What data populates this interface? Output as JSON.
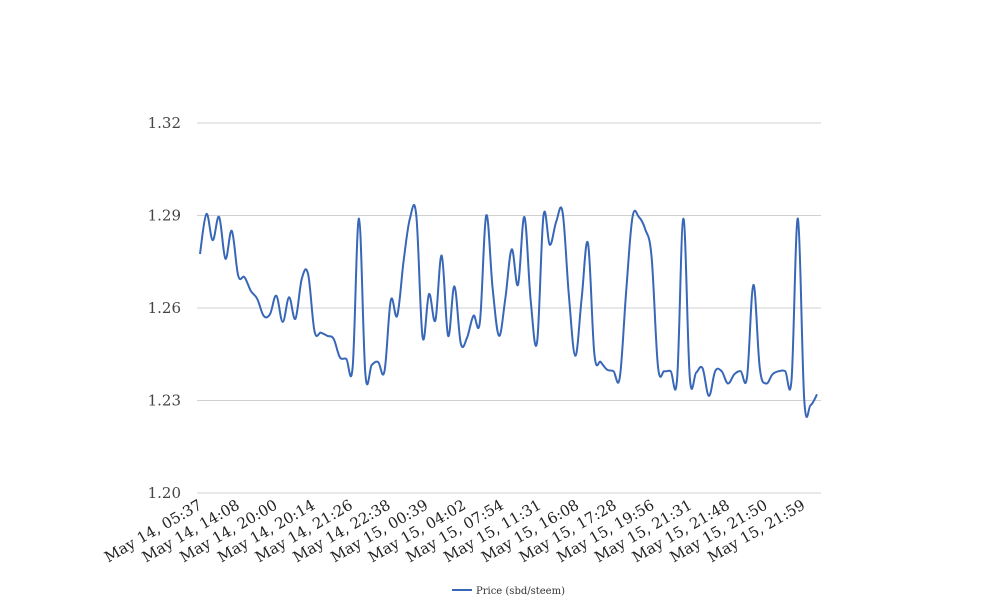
{
  "chart_data": {
    "type": "line",
    "title": "",
    "xlabel": "",
    "ylabel": "",
    "ylim": [
      1.2,
      1.32
    ],
    "yticks": [
      "1.20",
      "1.23",
      "1.26",
      "1.29",
      "1.32"
    ],
    "x_tick_labels": [
      "May 14, 05:37",
      "May 14, 14:08",
      "May 14, 20:00",
      "May 14, 20:14",
      "May 14, 21:26",
      "May 14, 22:38",
      "May 15, 00:39",
      "May 15, 04:02",
      "May 15, 07:54",
      "May 15, 11:31",
      "May 15, 16:08",
      "May 15, 17:28",
      "May 15, 19:56",
      "May 15, 21:31",
      "May 15, 21:48",
      "May 15, 21:50",
      "May 15, 21:59"
    ],
    "grid": true,
    "legend_position": "bottom-center",
    "series": [
      {
        "name": "Price (sbd/steem)",
        "color": "#3867b8",
        "values": [
          1.2775,
          1.2905,
          1.282,
          1.2895,
          1.276,
          1.285,
          1.2705,
          1.27,
          1.2655,
          1.263,
          1.2575,
          1.258,
          1.264,
          1.2555,
          1.2635,
          1.2565,
          1.2695,
          1.271,
          1.2525,
          1.252,
          1.251,
          1.25,
          1.244,
          1.2435,
          1.241,
          1.289,
          1.2385,
          1.2415,
          1.2425,
          1.2395,
          1.2625,
          1.2575,
          1.275,
          1.289,
          1.29,
          1.2505,
          1.2645,
          1.256,
          1.277,
          1.251,
          1.267,
          1.2485,
          1.2505,
          1.2575,
          1.2555,
          1.29,
          1.2665,
          1.251,
          1.263,
          1.279,
          1.2675,
          1.2895,
          1.262,
          1.249,
          1.29,
          1.2805,
          1.288,
          1.291,
          1.264,
          1.2445,
          1.263,
          1.281,
          1.245,
          1.2425,
          1.24,
          1.2395,
          1.2375,
          1.2655,
          1.2895,
          1.2895,
          1.2855,
          1.2765,
          1.241,
          1.2395,
          1.2395,
          1.237,
          1.289,
          1.2375,
          1.239,
          1.2405,
          1.2315,
          1.2395,
          1.2395,
          1.2355,
          1.2385,
          1.2395,
          1.2375,
          1.2675,
          1.2405,
          1.2355,
          1.2385,
          1.2395,
          1.2395,
          1.237,
          1.289,
          1.23,
          1.2285,
          1.232
        ]
      }
    ]
  }
}
